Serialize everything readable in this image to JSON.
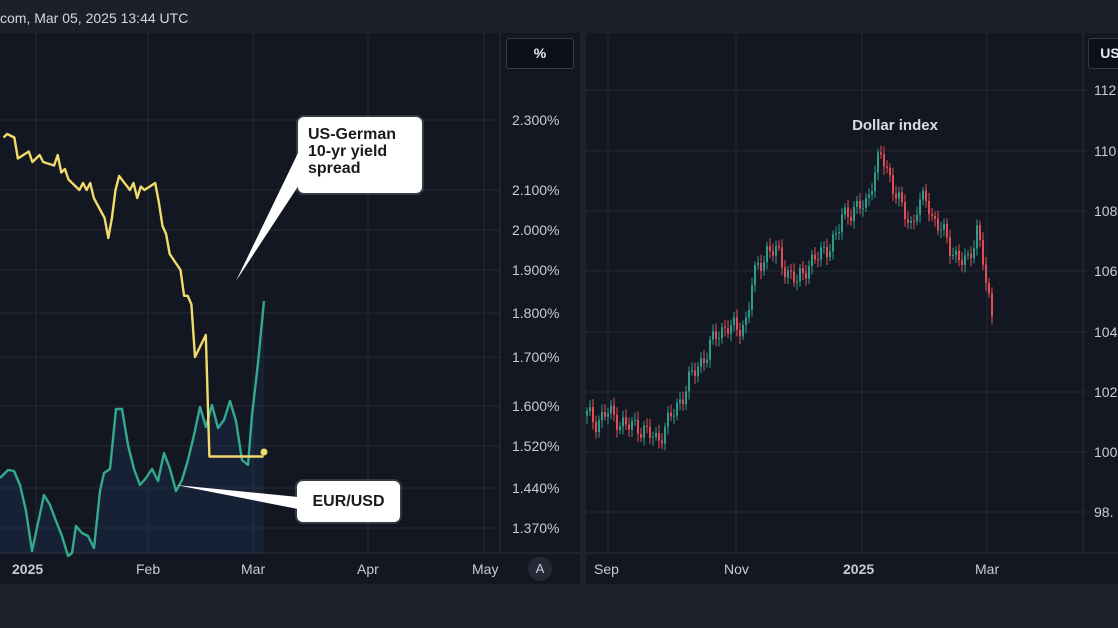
{
  "header": {
    "timestamp_text": "com, Mar 05, 2025 13:44 UTC"
  },
  "colors": {
    "background": "#121722",
    "grid": "#242a36",
    "yield_line": "#f1db6a",
    "eurusd_line": "#33a98e",
    "candle_up": "#2f9c8a",
    "candle_down": "#e24c55"
  },
  "left_chart": {
    "unit_label": "%",
    "corner_button": "A",
    "callout_spread": [
      "US-German",
      "10-yr yield",
      "spread"
    ],
    "callout_eurusd": "EUR/USD"
  },
  "right_chart": {
    "unit_label": "US",
    "title": "Dollar index"
  },
  "chart_data": [
    {
      "type": "line",
      "title": "",
      "xlabel": "",
      "ylabel": "",
      "x_tick_labels": [
        "2025",
        "Feb",
        "Mar",
        "Apr",
        "May"
      ],
      "y_tick_labels": [
        "2.300%",
        "2.100%",
        "2.000%",
        "1.900%",
        "1.800%",
        "1.700%",
        "1.600%",
        "1.520%",
        "1.440%",
        "1.370%"
      ],
      "y_ticks": [
        2.3,
        2.1,
        2.0,
        1.9,
        1.8,
        1.7,
        1.6,
        1.52,
        1.44,
        1.37
      ],
      "legend": "none",
      "series": [
        {
          "name": "US-German 10-yr yield spread",
          "color": "#f1db6a",
          "x": [
            "2024-12-23",
            "2024-12-24",
            "2024-12-26",
            "2024-12-27",
            "2024-12-30",
            "2024-12-31",
            "2025-01-02",
            "2025-01-03",
            "2025-01-06",
            "2025-01-07",
            "2025-01-08",
            "2025-01-09",
            "2025-01-10",
            "2025-01-13",
            "2025-01-14",
            "2025-01-15",
            "2025-01-16",
            "2025-01-17",
            "2025-01-20",
            "2025-01-21",
            "2025-01-22",
            "2025-01-23",
            "2025-01-24",
            "2025-01-27",
            "2025-01-28",
            "2025-01-29",
            "2025-01-30",
            "2025-01-31",
            "2025-02-03",
            "2025-02-04",
            "2025-02-05",
            "2025-02-06",
            "2025-02-07",
            "2025-02-10",
            "2025-02-11",
            "2025-02-12",
            "2025-02-13",
            "2025-02-14",
            "2025-02-17",
            "2025-02-18",
            "2025-02-19",
            "2025-02-20",
            "2025-02-21",
            "2025-02-24",
            "2025-02-25",
            "2025-02-26",
            "2025-02-27",
            "2025-02-28",
            "2025-03-03",
            "2025-03-04",
            "2025-03-05"
          ],
          "values": [
            2.25,
            2.26,
            2.25,
            2.19,
            2.21,
            2.18,
            2.2,
            2.18,
            2.17,
            2.2,
            2.15,
            2.16,
            2.13,
            2.1,
            2.12,
            2.1,
            2.12,
            2.08,
            2.03,
            1.98,
            2.03,
            2.1,
            2.14,
            2.1,
            2.12,
            2.08,
            2.11,
            2.1,
            2.12,
            2.07,
            2.01,
            1.99,
            1.94,
            1.9,
            1.84,
            1.84,
            1.82,
            1.7,
            1.75,
            1.5,
            1.5,
            1.5,
            1.5,
            1.5,
            1.5,
            1.5,
            1.5,
            1.5,
            1.5,
            1.5,
            1.5
          ]
        },
        {
          "name": "EUR/USD",
          "color": "#33a98e",
          "values_label": "EUR/USD"
        }
      ]
    },
    {
      "type": "candlestick",
      "title": "Dollar index",
      "x_tick_labels": [
        "Sep",
        "Nov",
        "2025",
        "Mar"
      ],
      "y_tick_labels": [
        "112",
        "110",
        "108",
        "106",
        "104",
        "102",
        "100",
        "98."
      ],
      "y_ticks": [
        112,
        110,
        108,
        106,
        104,
        102,
        100,
        98
      ],
      "legend": "none"
    }
  ]
}
